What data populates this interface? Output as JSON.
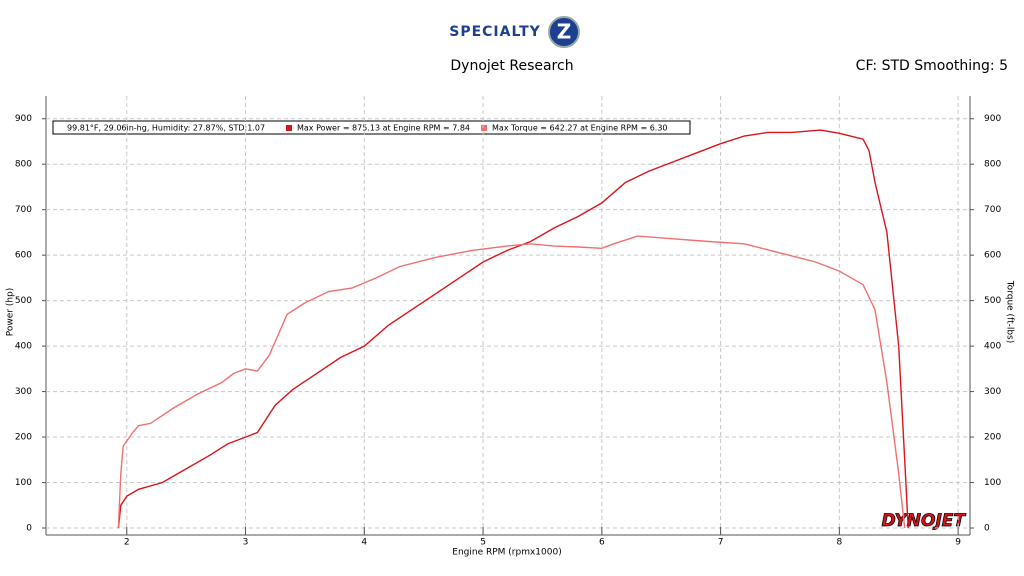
{
  "chart_data": {
    "type": "line",
    "logo": {
      "brand": "SPECIALTY",
      "mark": "Z"
    },
    "title": "Dynojet Research",
    "subtitle": "CF: STD Smoothing: 5",
    "watermark": "DYNOJET",
    "conditions": "99.81°F, 29.06in-hg, Humidity: 27.87%, STD:1.07",
    "xlabel": "Engine RPM (rpmx1000)",
    "ylabel": "Power (hp)",
    "y2label": "Torque (ft-lbs)",
    "xlim": [
      1.32,
      9.1
    ],
    "xticks": [
      2,
      3,
      4,
      5,
      6,
      7,
      8,
      9
    ],
    "ylim": [
      0,
      950
    ],
    "yticks": [
      0,
      100,
      200,
      300,
      400,
      500,
      600,
      700,
      800,
      900
    ],
    "y2lim": [
      0,
      950
    ],
    "y2ticks": [
      0,
      100,
      200,
      300,
      400,
      500,
      600,
      700,
      800,
      900
    ],
    "grid": true,
    "series": [
      {
        "name": "Max Power = 875.13 at Engine RPM = 7.84",
        "color": "#d9141b",
        "x": [
          1.93,
          1.95,
          2.0,
          2.1,
          2.3,
          2.5,
          2.7,
          2.85,
          3.0,
          3.1,
          3.25,
          3.4,
          3.6,
          3.8,
          4.0,
          4.2,
          4.4,
          4.6,
          4.8,
          5.0,
          5.2,
          5.4,
          5.6,
          5.8,
          6.0,
          6.2,
          6.4,
          6.6,
          6.8,
          7.0,
          7.2,
          7.4,
          7.6,
          7.84,
          8.0,
          8.2,
          8.25,
          8.3,
          8.4,
          8.5,
          8.55,
          8.58
        ],
        "values": [
          0,
          50,
          70,
          85,
          100,
          130,
          160,
          185,
          200,
          210,
          270,
          305,
          340,
          375,
          400,
          445,
          480,
          515,
          550,
          585,
          610,
          630,
          660,
          685,
          715,
          760,
          785,
          805,
          825,
          845,
          862,
          870,
          870,
          875,
          868,
          855,
          830,
          760,
          650,
          400,
          150,
          0
        ]
      },
      {
        "name": "Max Torque = 642.27 at Engine RPM = 6.30",
        "color": "#f07070",
        "axis": "y2",
        "x": [
          1.93,
          1.95,
          1.97,
          2.05,
          2.1,
          2.2,
          2.4,
          2.6,
          2.8,
          2.9,
          3.0,
          3.1,
          3.2,
          3.35,
          3.5,
          3.7,
          3.9,
          4.1,
          4.3,
          4.6,
          4.9,
          5.2,
          5.4,
          5.6,
          5.8,
          6.0,
          6.1,
          6.3,
          6.6,
          6.9,
          7.2,
          7.5,
          7.8,
          8.0,
          8.2,
          8.3,
          8.4,
          8.5,
          8.55
        ],
        "values": [
          0,
          120,
          180,
          210,
          225,
          230,
          265,
          295,
          320,
          340,
          350,
          345,
          380,
          470,
          495,
          520,
          528,
          550,
          575,
          595,
          610,
          620,
          625,
          620,
          618,
          615,
          625,
          642,
          636,
          630,
          625,
          605,
          585,
          565,
          535,
          480,
          320,
          120,
          0
        ]
      }
    ]
  }
}
